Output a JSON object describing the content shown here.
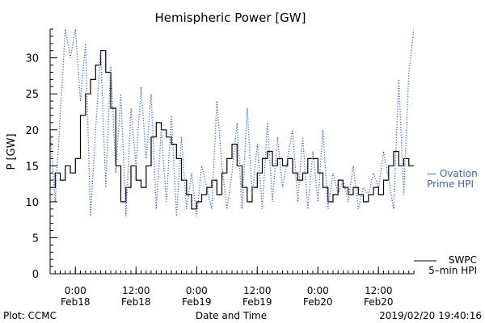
{
  "chart_data": {
    "type": "line",
    "title": "Hemispheric Power [GW]",
    "ylabel": "P [GW]",
    "xlabel": "Date and Time",
    "ylim": [
      0,
      34
    ],
    "yticks": [
      0,
      5,
      10,
      15,
      20,
      25,
      30
    ],
    "xlim": [
      "2019-02-17T19:00",
      "2019-02-20T19:00"
    ],
    "xticks": [
      {
        "t": "2019-02-18T00:00",
        "time": "0:00",
        "date": "Feb18"
      },
      {
        "t": "2019-02-18T12:00",
        "time": "12:00",
        "date": "Feb18"
      },
      {
        "t": "2019-02-19T00:00",
        "time": "0:00",
        "date": "Feb19"
      },
      {
        "t": "2019-02-19T12:00",
        "time": "12:00",
        "date": "Feb19"
      },
      {
        "t": "2019-02-20T00:00",
        "time": "0:00",
        "date": "Feb20"
      },
      {
        "t": "2019-02-20T12:00",
        "time": "12:00",
        "date": "Feb20"
      }
    ],
    "grid": false,
    "series": [
      {
        "name": "SWPC 5-min HPI",
        "label_lines": [
          "SWPC",
          "5–min HPI"
        ],
        "color": "#000000",
        "style": "step",
        "points": [
          [
            "2019-02-17T19:00",
            12
          ],
          [
            "2019-02-17T20:00",
            14
          ],
          [
            "2019-02-17T21:00",
            13
          ],
          [
            "2019-02-17T22:00",
            15
          ],
          [
            "2019-02-17T23:00",
            14
          ],
          [
            "2019-02-18T00:00",
            16
          ],
          [
            "2019-02-18T01:00",
            22
          ],
          [
            "2019-02-18T02:00",
            25
          ],
          [
            "2019-02-18T03:00",
            27
          ],
          [
            "2019-02-18T04:00",
            29
          ],
          [
            "2019-02-18T05:00",
            31
          ],
          [
            "2019-02-18T06:00",
            28
          ],
          [
            "2019-02-18T07:00",
            23
          ],
          [
            "2019-02-18T08:00",
            15
          ],
          [
            "2019-02-18T09:00",
            10
          ],
          [
            "2019-02-18T10:00",
            12
          ],
          [
            "2019-02-18T11:00",
            15
          ],
          [
            "2019-02-18T12:00",
            13
          ],
          [
            "2019-02-18T13:00",
            12
          ],
          [
            "2019-02-18T14:00",
            15
          ],
          [
            "2019-02-18T15:00",
            19
          ],
          [
            "2019-02-18T16:00",
            21
          ],
          [
            "2019-02-18T17:00",
            20
          ],
          [
            "2019-02-18T18:00",
            19
          ],
          [
            "2019-02-18T19:00",
            18
          ],
          [
            "2019-02-18T20:00",
            16
          ],
          [
            "2019-02-18T21:00",
            13
          ],
          [
            "2019-02-18T22:00",
            11
          ],
          [
            "2019-02-18T23:00",
            9
          ],
          [
            "2019-02-19T00:00",
            10
          ],
          [
            "2019-02-19T01:00",
            11
          ],
          [
            "2019-02-19T02:00",
            12
          ],
          [
            "2019-02-19T03:00",
            13
          ],
          [
            "2019-02-19T04:00",
            11
          ],
          [
            "2019-02-19T05:00",
            14
          ],
          [
            "2019-02-19T06:00",
            16
          ],
          [
            "2019-02-19T07:00",
            18
          ],
          [
            "2019-02-19T08:00",
            15
          ],
          [
            "2019-02-19T09:00",
            12
          ],
          [
            "2019-02-19T10:00",
            10
          ],
          [
            "2019-02-19T11:00",
            12
          ],
          [
            "2019-02-19T12:00",
            14
          ],
          [
            "2019-02-19T13:00",
            16
          ],
          [
            "2019-02-19T14:00",
            17
          ],
          [
            "2019-02-19T15:00",
            15
          ],
          [
            "2019-02-19T16:00",
            16
          ],
          [
            "2019-02-19T17:00",
            15
          ],
          [
            "2019-02-19T18:00",
            16
          ],
          [
            "2019-02-19T19:00",
            14
          ],
          [
            "2019-02-19T20:00",
            13
          ],
          [
            "2019-02-19T21:00",
            14
          ],
          [
            "2019-02-19T22:00",
            16
          ],
          [
            "2019-02-19T23:00",
            16
          ],
          [
            "2019-02-20T00:00",
            14
          ],
          [
            "2019-02-20T01:00",
            12
          ],
          [
            "2019-02-20T02:00",
            10
          ],
          [
            "2019-02-20T03:00",
            11
          ],
          [
            "2019-02-20T04:00",
            13
          ],
          [
            "2019-02-20T05:00",
            12
          ],
          [
            "2019-02-20T06:00",
            11
          ],
          [
            "2019-02-20T07:00",
            12
          ],
          [
            "2019-02-20T08:00",
            11
          ],
          [
            "2019-02-20T09:00",
            10
          ],
          [
            "2019-02-20T10:00",
            11
          ],
          [
            "2019-02-20T11:00",
            12
          ],
          [
            "2019-02-20T12:00",
            11
          ],
          [
            "2019-02-20T13:00",
            13
          ],
          [
            "2019-02-20T14:00",
            15
          ],
          [
            "2019-02-20T15:00",
            17
          ],
          [
            "2019-02-20T16:00",
            15
          ],
          [
            "2019-02-20T17:00",
            16
          ],
          [
            "2019-02-20T18:00",
            15
          ],
          [
            "2019-02-20T19:00",
            15
          ]
        ]
      },
      {
        "name": "Ovation Prime HPI",
        "label_lines": [
          "— Ovation",
          "Prime HPI"
        ],
        "color": "#3366cc",
        "style": "dotted",
        "points": [
          [
            "2019-02-17T19:00",
            20
          ],
          [
            "2019-02-17T20:00",
            10
          ],
          [
            "2019-02-17T21:00",
            22
          ],
          [
            "2019-02-17T22:00",
            34
          ],
          [
            "2019-02-17T23:00",
            30
          ],
          [
            "2019-02-18T00:00",
            34
          ],
          [
            "2019-02-18T01:00",
            24
          ],
          [
            "2019-02-18T02:00",
            32
          ],
          [
            "2019-02-18T03:00",
            8
          ],
          [
            "2019-02-18T04:00",
            20
          ],
          [
            "2019-02-18T05:00",
            31
          ],
          [
            "2019-02-18T06:00",
            12
          ],
          [
            "2019-02-18T07:00",
            29
          ],
          [
            "2019-02-18T08:00",
            14
          ],
          [
            "2019-02-18T09:00",
            25
          ],
          [
            "2019-02-18T10:00",
            8
          ],
          [
            "2019-02-18T11:00",
            23
          ],
          [
            "2019-02-18T12:00",
            15
          ],
          [
            "2019-02-18T13:00",
            26
          ],
          [
            "2019-02-18T14:00",
            16
          ],
          [
            "2019-02-18T15:00",
            25
          ],
          [
            "2019-02-18T16:00",
            9
          ],
          [
            "2019-02-18T17:00",
            20
          ],
          [
            "2019-02-18T18:00",
            10
          ],
          [
            "2019-02-18T19:00",
            22
          ],
          [
            "2019-02-18T20:00",
            8
          ],
          [
            "2019-02-18T21:00",
            19
          ],
          [
            "2019-02-18T22:00",
            9
          ],
          [
            "2019-02-18T23:00",
            14
          ],
          [
            "2019-02-19T00:00",
            8
          ],
          [
            "2019-02-19T01:00",
            15
          ],
          [
            "2019-02-19T02:00",
            12
          ],
          [
            "2019-02-19T03:00",
            9
          ],
          [
            "2019-02-19T04:00",
            24
          ],
          [
            "2019-02-19T05:00",
            15
          ],
          [
            "2019-02-19T06:00",
            9
          ],
          [
            "2019-02-19T07:00",
            14
          ],
          [
            "2019-02-19T08:00",
            21
          ],
          [
            "2019-02-19T09:00",
            9
          ],
          [
            "2019-02-19T10:00",
            23
          ],
          [
            "2019-02-19T11:00",
            11
          ],
          [
            "2019-02-19T12:00",
            18
          ],
          [
            "2019-02-19T13:00",
            9
          ],
          [
            "2019-02-19T14:00",
            21
          ],
          [
            "2019-02-19T15:00",
            10
          ],
          [
            "2019-02-19T16:00",
            19
          ],
          [
            "2019-02-19T17:00",
            12
          ],
          [
            "2019-02-19T18:00",
            16
          ],
          [
            "2019-02-19T19:00",
            20
          ],
          [
            "2019-02-19T20:00",
            10
          ],
          [
            "2019-02-19T21:00",
            19
          ],
          [
            "2019-02-19T22:00",
            9
          ],
          [
            "2019-02-19T23:00",
            17
          ],
          [
            "2019-02-20T00:00",
            10
          ],
          [
            "2019-02-20T01:00",
            20
          ],
          [
            "2019-02-20T02:00",
            9
          ],
          [
            "2019-02-20T03:00",
            14
          ],
          [
            "2019-02-20T04:00",
            11
          ],
          [
            "2019-02-20T05:00",
            13
          ],
          [
            "2019-02-20T06:00",
            10
          ],
          [
            "2019-02-20T07:00",
            15
          ],
          [
            "2019-02-20T08:00",
            9
          ],
          [
            "2019-02-20T09:00",
            12
          ],
          [
            "2019-02-20T10:00",
            11
          ],
          [
            "2019-02-20T11:00",
            14
          ],
          [
            "2019-02-20T12:00",
            12
          ],
          [
            "2019-02-20T13:00",
            17
          ],
          [
            "2019-02-20T14:00",
            13
          ],
          [
            "2019-02-20T15:00",
            9
          ],
          [
            "2019-02-20T16:00",
            27
          ],
          [
            "2019-02-20T17:00",
            11
          ],
          [
            "2019-02-20T18:00",
            28
          ],
          [
            "2019-02-20T19:00",
            34
          ]
        ]
      }
    ]
  },
  "footer": {
    "plot_credit": "Plot: CCMC",
    "timestamp": "2019/02/20 19:40:16"
  }
}
